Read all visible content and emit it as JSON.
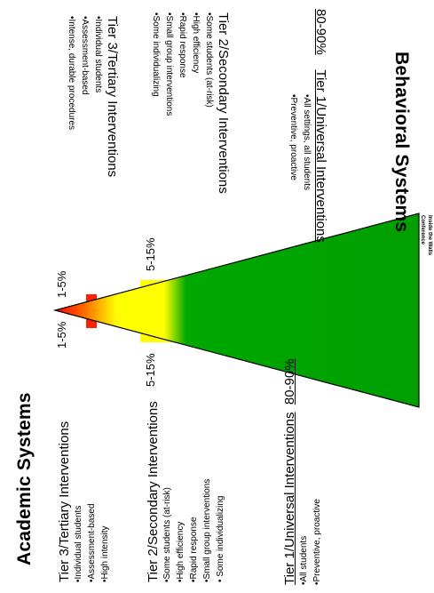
{
  "academic": {
    "title": "Academic Systems",
    "tier3": {
      "heading": "Tier 3/Tertiary Interventions",
      "items": [
        "•Individual students",
        "•Assessment-based",
        "•High intensity"
      ]
    },
    "tier2": {
      "heading": "Tier 2/Secondary Interventions",
      "items": [
        "•Some students (at-risk)",
        "•High efficiency",
        "•Rapid response",
        "•Small group interventions",
        "• Some individualizing"
      ]
    },
    "tier1": {
      "heading": "Tier 1/Universal Interventions",
      "percent": "80-90%",
      "items": [
        "•All students",
        "•Preventive, proactive"
      ]
    }
  },
  "behavioral": {
    "title": "Behavioral Systems",
    "tier3": {
      "heading": "Tier 3/Tertiary Interventions",
      "items": [
        "•Individual students",
        "•Assessment-based",
        "•Intense, durable procedures"
      ]
    },
    "tier2": {
      "heading": "Tier 2/Secondary Interventions",
      "items": [
        "•Some students (at-risk)",
        "•High efficiency",
        "•Rapid response",
        "•Small group interventions",
        "•Some individualizing"
      ]
    },
    "tier1": {
      "heading": "Tier 1/Universal Interventions",
      "percent": "80-90%",
      "items": [
        "•All settings, all students",
        "•Preventive, proactive"
      ]
    }
  },
  "percentages": {
    "tier3_left": "1-5%",
    "tier3_right": "1-5%",
    "tier2_left": "5-15%",
    "tier2_right": "5-15%"
  },
  "citation": [
    "Inside the Walls",
    "Conference"
  ],
  "colors": {
    "tier3": "#ff0000",
    "tier2": "#ffff00",
    "tier1": "#00a000"
  }
}
